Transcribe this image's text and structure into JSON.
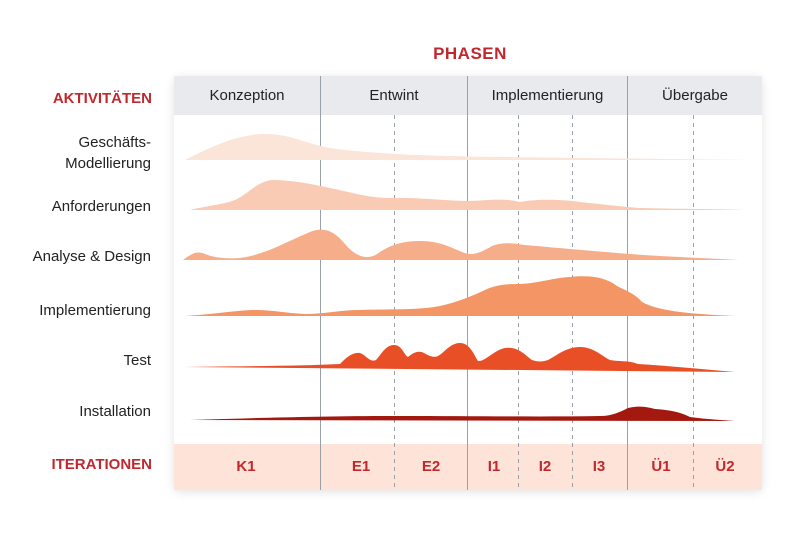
{
  "title": "PHASEN",
  "activities_heading": "AKTIVITÄTEN",
  "iterations_heading": "ITERATIONEN",
  "phases": [
    "Konzeption",
    "Entwint",
    "Implementierung",
    "Übergabe"
  ],
  "activities": {
    "geschaefts_line1": "Geschäfts-",
    "geschaefts_line2": "Modellierung",
    "anforderungen": "Anforderungen",
    "analyse": "Analyse & Design",
    "implementierung": "Implementierung",
    "test": "Test",
    "installation": "Installation"
  },
  "iterations": [
    "K1",
    "E1",
    "E2",
    "I1",
    "I2",
    "I3",
    "Ü1",
    "Ü2"
  ],
  "colors": {
    "accent": "#c0282d",
    "geschaefts": "#fbe4d8",
    "anforderungen": "#f9cbb4",
    "analyse": "#f6ad8a",
    "implementierung": "#f49566",
    "test": "#e84f26",
    "installation": "#a3190f"
  }
}
